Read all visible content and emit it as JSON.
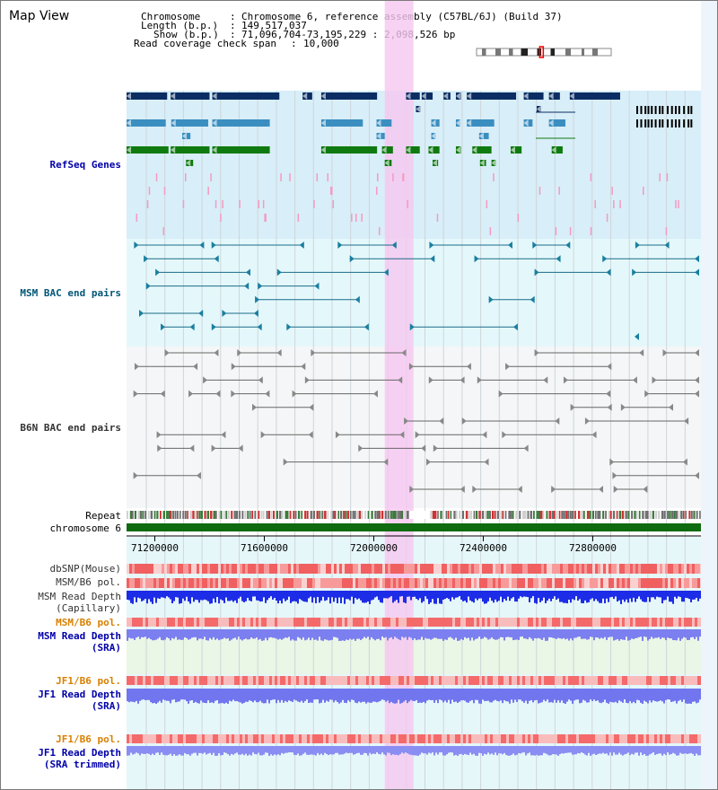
{
  "header": {
    "title": "Map View",
    "chromosome_label": "Chromosome",
    "chromosome_value": "Chromosome 6, reference assembly (C57BL/6J) (Build 37)",
    "length_label": "Length (b.p.)",
    "length_value": "149,517,037",
    "show_label": "Show (b.p.)",
    "show_value": "71,096,704-73,195,229 : 2,098,526 bp",
    "coverage_label": "Read coverage check span",
    "coverage_value": "10,000"
  },
  "view": {
    "start_bp": 71096704,
    "end_bp": 73195229,
    "highlight_start_bp": 72040000,
    "highlight_end_bp": 72145000
  },
  "ideogram": {
    "chromosome_length_bp": 149517037,
    "marker_bp": 72100000
  },
  "axis": {
    "ticks": [
      "71200000",
      "71600000",
      "72000000",
      "72400000",
      "72800000"
    ],
    "tick_values": [
      71200000,
      71600000,
      72000000,
      72400000,
      72800000
    ]
  },
  "tracks": [
    {
      "id": "refseq",
      "label": "RefSeq Genes",
      "color": "#0000aa"
    },
    {
      "id": "msm-bac",
      "label": "MSM BAC end pairs",
      "color": "#005577"
    },
    {
      "id": "b6n-bac",
      "label": "B6N BAC end pairs",
      "color": "#333333"
    },
    {
      "id": "repeat",
      "label": "Repeat",
      "color": "#000000"
    },
    {
      "id": "chromosome",
      "label": "chromosome 6",
      "color": "#000000"
    },
    {
      "id": "dbsnp",
      "label": "dbSNP(Mouse)",
      "color": "#333333"
    },
    {
      "id": "msm-b6-pol",
      "label": "MSM/B6 pol.",
      "color": "#333333"
    },
    {
      "id": "msm-depth-cap",
      "label": "MSM Read Depth\n(Capillary)",
      "color": "#333333"
    },
    {
      "id": "msm-b6-pol-sra",
      "label": "MSM/B6 pol.",
      "color": "#d98000"
    },
    {
      "id": "msm-depth-sra",
      "label": "MSM Read Depth\n(SRA)",
      "color": "#0000aa"
    },
    {
      "id": "jf1-b6-pol",
      "label": "JF1/B6 pol.",
      "color": "#d98000"
    },
    {
      "id": "jf1-depth-sra",
      "label": "JF1 Read Depth\n(SRA)",
      "color": "#0000aa"
    },
    {
      "id": "jf1-b6-pol-trim",
      "label": "JF1/B6 pol.",
      "color": "#d98000"
    },
    {
      "id": "jf1-depth-trim",
      "label": "JF1 Read Depth\n(SRA trimmed)",
      "color": "#0000aa"
    }
  ],
  "refseq_rows": [
    {
      "color": "#0b2d63",
      "genes": [
        [
          71096704,
          71245000
        ],
        [
          71258000,
          71400000
        ],
        [
          71410000,
          71655000
        ],
        [
          71740000,
          71775000
        ],
        [
          71808000,
          72012000
        ],
        [
          72118000,
          72168000
        ],
        [
          72175000,
          72215000
        ],
        [
          72255000,
          72280000
        ],
        [
          72300000,
          72318000
        ],
        [
          72340000,
          72520000
        ],
        [
          72548000,
          72620000
        ],
        [
          72640000,
          72680000
        ],
        [
          72716000,
          72900000
        ]
      ]
    },
    {
      "color": "#0b2d63",
      "genes": [
        [
          72154000,
          72165000
        ],
        [
          72595000,
          72605000
        ]
      ]
    },
    {
      "color": "#3b8ec0",
      "genes": [
        [
          71096704,
          71240000
        ],
        [
          71260000,
          71395000
        ],
        [
          71410000,
          71620000
        ],
        [
          71808000,
          71960000
        ],
        [
          72010000,
          72065000
        ],
        [
          72210000,
          72240000
        ],
        [
          72300000,
          72315000
        ],
        [
          72340000,
          72440000
        ],
        [
          72548000,
          72580000
        ],
        [
          72640000,
          72700000
        ]
      ]
    },
    {
      "color": "#3b8ec0",
      "genes": [
        [
          71300000,
          71330000
        ],
        [
          72010000,
          72040000
        ],
        [
          72210000,
          72225000
        ],
        [
          72385000,
          72420000
        ]
      ]
    },
    {
      "color": "#0f7a0f",
      "genes": [
        [
          71096704,
          71250000
        ],
        [
          71258000,
          71400000
        ],
        [
          71410000,
          71620000
        ],
        [
          71808000,
          72012000
        ],
        [
          72030000,
          72070000
        ],
        [
          72118000,
          72168000
        ],
        [
          72200000,
          72240000
        ],
        [
          72300000,
          72318000
        ],
        [
          72360000,
          72430000
        ],
        [
          72500000,
          72540000
        ],
        [
          72650000,
          72690000
        ]
      ]
    },
    {
      "color": "#0f7a0f",
      "genes": [
        [
          71314000,
          71340000
        ],
        [
          72040000,
          72065000
        ],
        [
          72215000,
          72235000
        ],
        [
          72388000,
          72410000
        ],
        [
          72430000,
          72445000
        ]
      ]
    }
  ],
  "chart_data": {
    "type": "table",
    "title": "",
    "x": [
      71200000,
      71600000,
      72000000,
      72400000,
      72800000
    ],
    "xlim": [
      71096704,
      73195229
    ]
  }
}
